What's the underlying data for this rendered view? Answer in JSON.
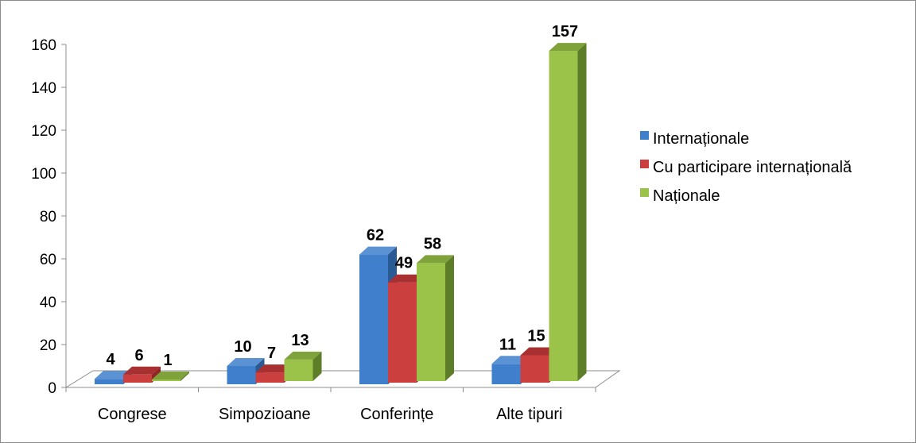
{
  "chart_data": {
    "type": "bar",
    "title": "",
    "xlabel": "",
    "ylabel": "",
    "ylim": [
      0,
      160
    ],
    "yticks": [
      "0",
      "20",
      "40",
      "60",
      "80",
      "100",
      "120",
      "140",
      "160"
    ],
    "grid": false,
    "legend_position": "right",
    "categories": [
      "Congrese",
      "Simpozioane",
      "Conferințe",
      "Alte tipuri"
    ],
    "series": [
      {
        "name": "Internaționale",
        "values": [
          4,
          10,
          62,
          11
        ],
        "color": "#3f7fcb",
        "side_color": "#2a5a94",
        "top_color": "#5a92d4"
      },
      {
        "name": "Cu participare internațională",
        "values": [
          6,
          7,
          49,
          15
        ],
        "color": "#cb3f3f",
        "side_color": "#8f2626",
        "top_color": "#a83030"
      },
      {
        "name": "Naționale",
        "values": [
          1,
          13,
          58,
          157
        ],
        "color": "#9bc34a",
        "side_color": "#5e7d28",
        "top_color": "#7fa33a"
      }
    ]
  }
}
